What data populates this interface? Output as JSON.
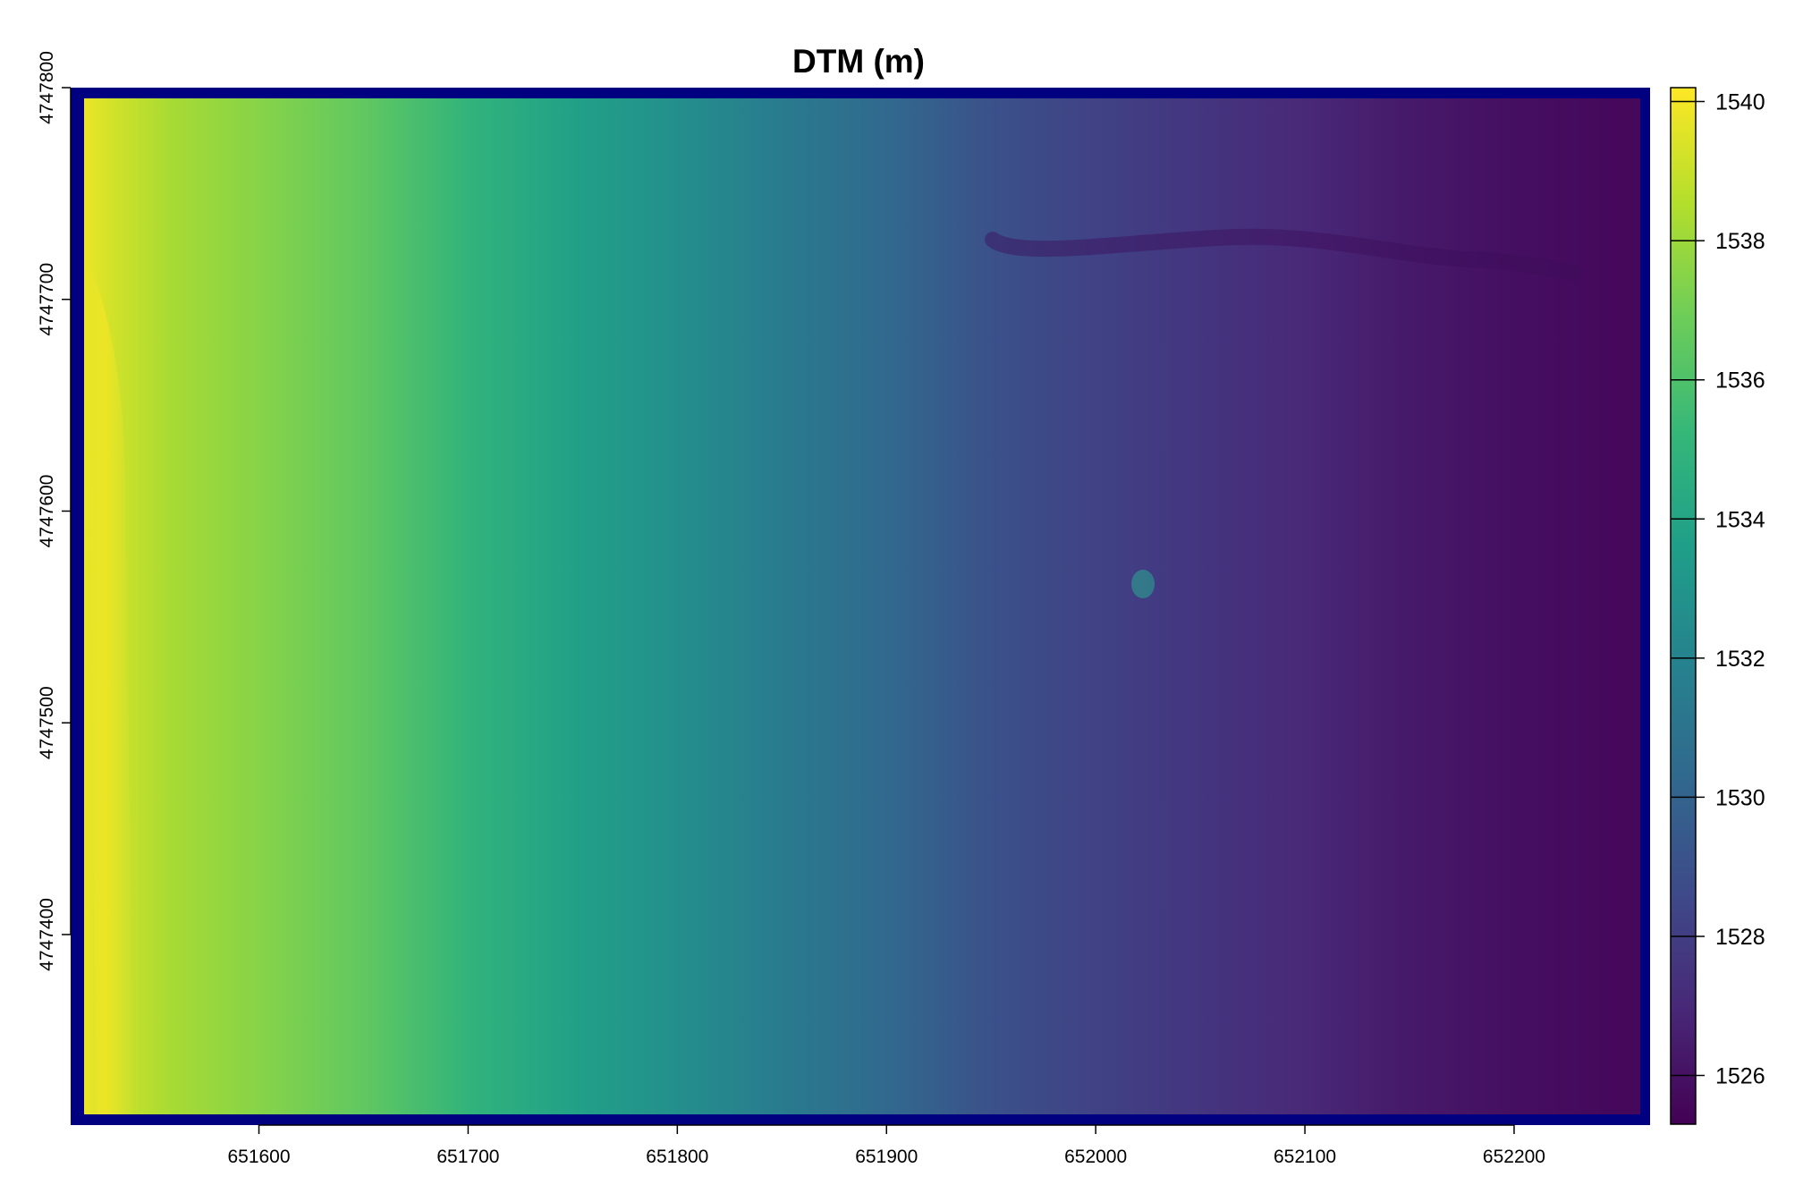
{
  "chart_data": {
    "type": "heatmap",
    "title": "DTM (m)",
    "xlabel": "",
    "ylabel": "",
    "xlim": [
      651510,
      652265
    ],
    "ylim": [
      4747310,
      4747800
    ],
    "x_ticks": [
      651600,
      651700,
      651800,
      651900,
      652000,
      652100,
      652200
    ],
    "y_ticks": [
      4747400,
      4747500,
      4747600,
      4747700,
      4747800
    ],
    "x_tick_labels": [
      "651600",
      "651700",
      "651800",
      "651900",
      "652000",
      "652100",
      "652200"
    ],
    "y_tick_labels": [
      "4747400",
      "4747500",
      "4747600",
      "4747700",
      "4747800"
    ],
    "colorbar": {
      "range": [
        1525.3,
        1540.2
      ],
      "ticks": [
        1526,
        1528,
        1530,
        1532,
        1534,
        1536,
        1538,
        1540
      ],
      "tick_labels": [
        "1526",
        "1528",
        "1530",
        "1532",
        "1534",
        "1536",
        "1538",
        "1540"
      ],
      "colormap": "viridis"
    },
    "elevation_profile": {
      "x": [
        651515,
        651530,
        651560,
        651600,
        651650,
        651700,
        651750,
        651800,
        651850,
        651900,
        651950,
        652000,
        652050,
        652100,
        652150,
        652200,
        652250
      ],
      "z": [
        1539.8,
        1539.2,
        1538.2,
        1537.5,
        1536.5,
        1535.0,
        1533.8,
        1532.7,
        1531.5,
        1530.3,
        1529.0,
        1528.2,
        1527.6,
        1527.0,
        1526.3,
        1525.9,
        1525.6
      ]
    },
    "no_data_color": "#000080"
  },
  "colors": {
    "nodata_border": "#000080",
    "axis": "#000000",
    "viridis_stops": [
      "#440154",
      "#482878",
      "#3E4A89",
      "#31688E",
      "#26828E",
      "#1F9E89",
      "#35B779",
      "#6DCD59",
      "#B4DE2C",
      "#FDE725"
    ]
  }
}
